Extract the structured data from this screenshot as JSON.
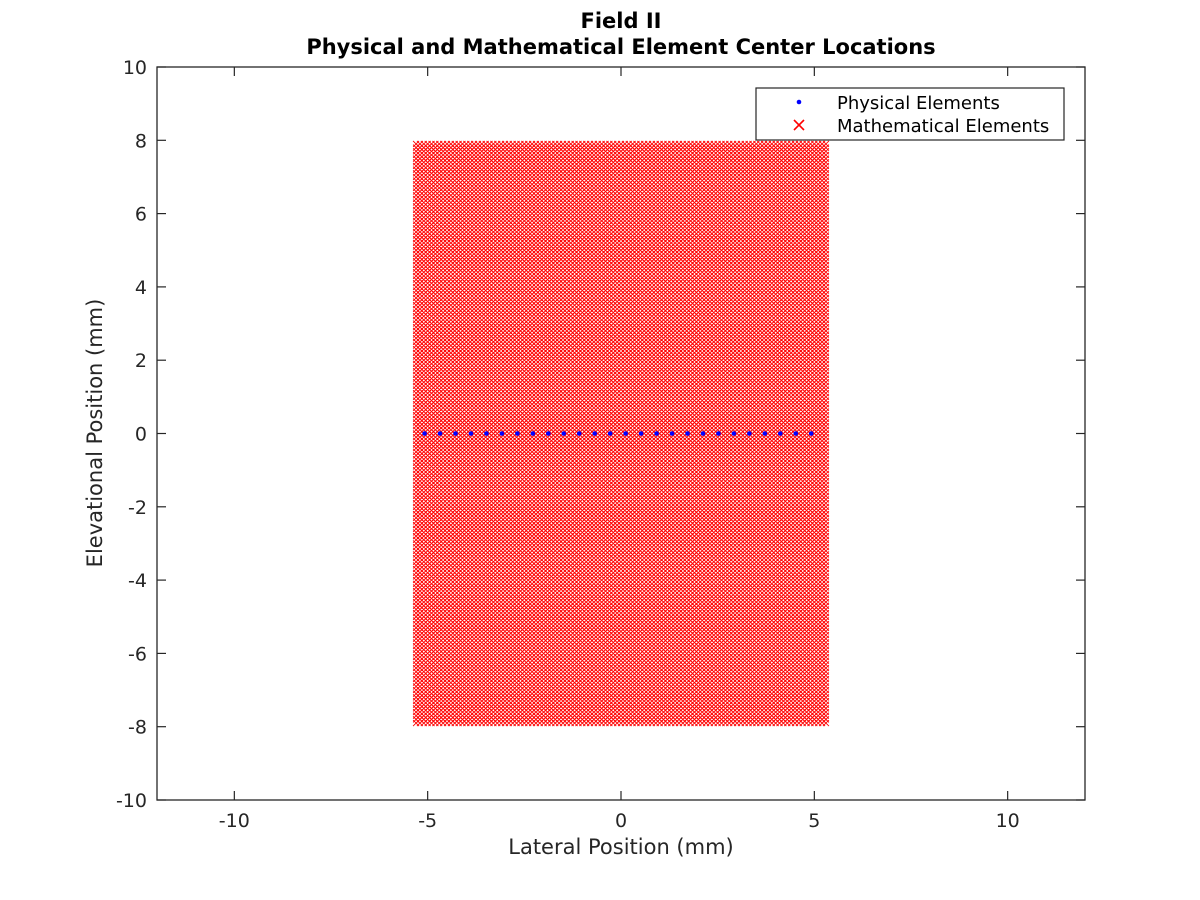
{
  "chart_data": {
    "type": "scatter",
    "title": [
      "Field II",
      "Physical and Mathematical Element Center Locations"
    ],
    "xlabel": "Lateral Position (mm)",
    "ylabel": "Elevational Position (mm)",
    "xlim": [
      -12,
      12
    ],
    "ylim": [
      -10,
      10
    ],
    "xticks": [
      -10,
      -5,
      0,
      5,
      10
    ],
    "yticks": [
      -10,
      -8,
      -6,
      -4,
      -2,
      0,
      2,
      4,
      6,
      8,
      10
    ],
    "grid": false,
    "legend_position": "top-right",
    "series": [
      {
        "name": "Physical Elements",
        "marker": "dot",
        "color": "#0000ff",
        "x": [
          -5.08,
          -4.68,
          -4.28,
          -3.88,
          -3.48,
          -3.08,
          -2.68,
          -2.28,
          -1.88,
          -1.48,
          -1.08,
          -0.68,
          -0.28,
          0.12,
          0.52,
          0.92,
          1.32,
          1.72,
          2.12,
          2.52,
          2.92,
          3.32,
          3.72,
          4.12,
          4.52,
          4.92
        ],
        "y": [
          0,
          0,
          0,
          0,
          0,
          0,
          0,
          0,
          0,
          0,
          0,
          0,
          0,
          0,
          0,
          0,
          0,
          0,
          0,
          0,
          0,
          0,
          0,
          0,
          0,
          0
        ]
      },
      {
        "name": "Mathematical Elements",
        "marker": "x",
        "color": "#ff0000",
        "x_range": [
          -5.3,
          5.3
        ],
        "y_range": [
          -7.9,
          7.9
        ],
        "x_spacing": 0.1,
        "y_spacing": 0.1
      }
    ]
  }
}
